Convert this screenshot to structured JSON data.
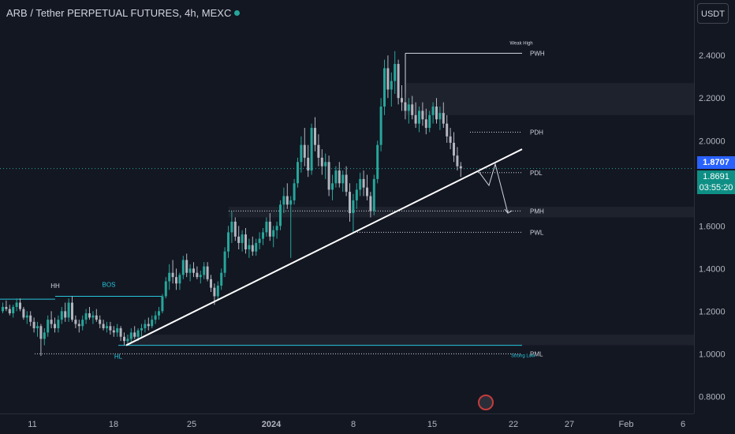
{
  "header": {
    "title": "ARB / Tether PERPETUAL FUTURES, 4h, MEXC",
    "unit_button": "USDT"
  },
  "price_tags": {
    "last_price": "1.8707",
    "current_price": "1.8691",
    "countdown": "03:55:20"
  },
  "colors": {
    "background": "#131722",
    "up": "#26a69a",
    "down": "#b2b5be",
    "trendline": "#ffffff",
    "accent_line": "#26c6da",
    "last_price_tag": "#2962ff",
    "current_price_tag": "#0e8f85"
  },
  "chart_data": {
    "type": "candlestick",
    "y_axis": {
      "ticks": [
        "0.8000",
        "1.0000",
        "1.2000",
        "1.4000",
        "1.6000",
        "1.8000",
        "2.0000",
        "2.2000",
        "2.4000"
      ],
      "ylim": [
        0.72,
        2.66
      ],
      "position": "right"
    },
    "x_axis": {
      "tick_labels": [
        "11",
        "18",
        "25",
        "2024",
        "8",
        "15",
        "22",
        "27",
        "Feb",
        "6"
      ]
    },
    "annotations": [
      {
        "text": "HH",
        "role": "swing-high-label"
      },
      {
        "text": "BOS",
        "role": "break-of-structure-label"
      },
      {
        "text": "HL",
        "role": "swing-low-label"
      },
      {
        "text": "Weak High",
        "role": "label"
      },
      {
        "text": "PWH",
        "value": 2.41
      },
      {
        "text": "PDH",
        "value": 2.04
      },
      {
        "text": "PDL",
        "value": 1.85
      },
      {
        "text": "PMH",
        "value": 1.67
      },
      {
        "text": "PWL",
        "value": 1.57
      },
      {
        "text": "PML",
        "value": 1.0
      },
      {
        "text": "Strong Low",
        "role": "label"
      }
    ],
    "levels": {
      "hh": 1.26,
      "bos": 1.27,
      "hl": 1.04,
      "pwh": 2.41,
      "pdh": 2.04,
      "pdl": 1.85,
      "pmh": 1.67,
      "pwl": 1.57,
      "pml": 1.0,
      "cyan_line": 1.04
    },
    "zones": [
      {
        "from": 2.27,
        "to": 2.12
      },
      {
        "from": 1.69,
        "to": 1.64
      },
      {
        "from": 1.09,
        "to": 1.04
      }
    ],
    "trendline": {
      "from_value": 1.04,
      "to_value": 1.96
    },
    "projection": [
      1.86,
      1.79,
      1.89,
      1.66
    ],
    "last_price": 1.8707,
    "current_price": 1.8691,
    "ohlc": [
      [
        1.2,
        1.24,
        1.19,
        1.22
      ],
      [
        1.22,
        1.25,
        1.2,
        1.21
      ],
      [
        1.21,
        1.23,
        1.18,
        1.19
      ],
      [
        1.19,
        1.23,
        1.17,
        1.22
      ],
      [
        1.22,
        1.26,
        1.2,
        1.24
      ],
      [
        1.24,
        1.26,
        1.2,
        1.21
      ],
      [
        1.21,
        1.22,
        1.16,
        1.17
      ],
      [
        1.17,
        1.2,
        1.14,
        1.18
      ],
      [
        1.18,
        1.2,
        1.13,
        1.15
      ],
      [
        1.15,
        1.17,
        1.1,
        1.12
      ],
      [
        1.12,
        1.15,
        1.08,
        1.13
      ],
      [
        1.13,
        1.14,
        0.99,
        1.07
      ],
      [
        1.07,
        1.12,
        1.04,
        1.1
      ],
      [
        1.1,
        1.18,
        1.08,
        1.16
      ],
      [
        1.16,
        1.2,
        1.12,
        1.14
      ],
      [
        1.14,
        1.17,
        1.1,
        1.12
      ],
      [
        1.12,
        1.18,
        1.1,
        1.16
      ],
      [
        1.16,
        1.22,
        1.14,
        1.2
      ],
      [
        1.2,
        1.24,
        1.15,
        1.17
      ],
      [
        1.17,
        1.26,
        1.15,
        1.24
      ],
      [
        1.24,
        1.27,
        1.15,
        1.16
      ],
      [
        1.16,
        1.18,
        1.12,
        1.14
      ],
      [
        1.14,
        1.16,
        1.1,
        1.13
      ],
      [
        1.13,
        1.18,
        1.11,
        1.16
      ],
      [
        1.16,
        1.21,
        1.14,
        1.19
      ],
      [
        1.19,
        1.22,
        1.16,
        1.17
      ],
      [
        1.17,
        1.2,
        1.14,
        1.18
      ],
      [
        1.18,
        1.21,
        1.15,
        1.16
      ],
      [
        1.16,
        1.18,
        1.12,
        1.14
      ],
      [
        1.14,
        1.16,
        1.11,
        1.12
      ],
      [
        1.12,
        1.15,
        1.1,
        1.13
      ],
      [
        1.13,
        1.15,
        1.09,
        1.11
      ],
      [
        1.11,
        1.13,
        1.08,
        1.1
      ],
      [
        1.1,
        1.14,
        1.08,
        1.12
      ],
      [
        1.12,
        1.13,
        1.06,
        1.08
      ],
      [
        1.08,
        1.1,
        1.04,
        1.06
      ],
      [
        1.06,
        1.09,
        1.04,
        1.07
      ],
      [
        1.07,
        1.12,
        1.05,
        1.1
      ],
      [
        1.1,
        1.13,
        1.07,
        1.08
      ],
      [
        1.08,
        1.12,
        1.06,
        1.11
      ],
      [
        1.11,
        1.14,
        1.08,
        1.12
      ],
      [
        1.12,
        1.16,
        1.1,
        1.14
      ],
      [
        1.14,
        1.17,
        1.11,
        1.13
      ],
      [
        1.13,
        1.18,
        1.12,
        1.16
      ],
      [
        1.16,
        1.2,
        1.14,
        1.18
      ],
      [
        1.18,
        1.22,
        1.16,
        1.2
      ],
      [
        1.2,
        1.28,
        1.19,
        1.27
      ],
      [
        1.27,
        1.36,
        1.26,
        1.34
      ],
      [
        1.34,
        1.42,
        1.3,
        1.38
      ],
      [
        1.38,
        1.44,
        1.33,
        1.36
      ],
      [
        1.36,
        1.4,
        1.3,
        1.33
      ],
      [
        1.33,
        1.38,
        1.3,
        1.37
      ],
      [
        1.37,
        1.46,
        1.35,
        1.44
      ],
      [
        1.44,
        1.47,
        1.36,
        1.38
      ],
      [
        1.38,
        1.42,
        1.34,
        1.4
      ],
      [
        1.4,
        1.43,
        1.36,
        1.38
      ],
      [
        1.38,
        1.41,
        1.35,
        1.36
      ],
      [
        1.36,
        1.39,
        1.33,
        1.37
      ],
      [
        1.37,
        1.43,
        1.35,
        1.41
      ],
      [
        1.41,
        1.43,
        1.34,
        1.35
      ],
      [
        1.35,
        1.37,
        1.29,
        1.31
      ],
      [
        1.31,
        1.33,
        1.23,
        1.27
      ],
      [
        1.27,
        1.34,
        1.25,
        1.32
      ],
      [
        1.32,
        1.4,
        1.3,
        1.38
      ],
      [
        1.38,
        1.5,
        1.36,
        1.48
      ],
      [
        1.48,
        1.6,
        1.45,
        1.57
      ],
      [
        1.57,
        1.67,
        1.52,
        1.62
      ],
      [
        1.62,
        1.64,
        1.53,
        1.55
      ],
      [
        1.55,
        1.6,
        1.49,
        1.52
      ],
      [
        1.52,
        1.58,
        1.48,
        1.56
      ],
      [
        1.56,
        1.59,
        1.47,
        1.49
      ],
      [
        1.49,
        1.54,
        1.45,
        1.51
      ],
      [
        1.51,
        1.55,
        1.46,
        1.48
      ],
      [
        1.48,
        1.54,
        1.46,
        1.52
      ],
      [
        1.52,
        1.57,
        1.49,
        1.54
      ],
      [
        1.54,
        1.59,
        1.51,
        1.57
      ],
      [
        1.57,
        1.64,
        1.55,
        1.62
      ],
      [
        1.62,
        1.66,
        1.53,
        1.55
      ],
      [
        1.55,
        1.6,
        1.5,
        1.58
      ],
      [
        1.58,
        1.62,
        1.54,
        1.6
      ],
      [
        1.6,
        1.72,
        1.58,
        1.7
      ],
      [
        1.7,
        1.78,
        1.66,
        1.74
      ],
      [
        1.74,
        1.8,
        1.68,
        1.7
      ],
      [
        1.7,
        1.74,
        1.45,
        1.72
      ],
      [
        1.72,
        1.82,
        1.7,
        1.8
      ],
      [
        1.8,
        1.92,
        1.78,
        1.9
      ],
      [
        1.9,
        2.02,
        1.85,
        1.98
      ],
      [
        1.98,
        2.06,
        1.88,
        1.92
      ],
      [
        1.92,
        1.98,
        1.83,
        1.86
      ],
      [
        1.86,
        2.08,
        1.84,
        2.06
      ],
      [
        2.06,
        2.11,
        1.95,
        1.98
      ],
      [
        1.98,
        2.03,
        1.88,
        1.92
      ],
      [
        1.92,
        1.96,
        1.84,
        1.88
      ],
      [
        1.88,
        1.94,
        1.82,
        1.9
      ],
      [
        1.9,
        1.93,
        1.74,
        1.77
      ],
      [
        1.77,
        1.84,
        1.72,
        1.8
      ],
      [
        1.8,
        1.88,
        1.78,
        1.86
      ],
      [
        1.86,
        1.9,
        1.78,
        1.8
      ],
      [
        1.8,
        1.86,
        1.76,
        1.84
      ],
      [
        1.84,
        1.88,
        1.74,
        1.76
      ],
      [
        1.76,
        1.8,
        1.62,
        1.66
      ],
      [
        1.66,
        1.75,
        1.57,
        1.72
      ],
      [
        1.72,
        1.8,
        1.68,
        1.77
      ],
      [
        1.77,
        1.85,
        1.74,
        1.82
      ],
      [
        1.82,
        1.86,
        1.74,
        1.78
      ],
      [
        1.78,
        1.84,
        1.72,
        1.74
      ],
      [
        1.74,
        1.76,
        1.64,
        1.67
      ],
      [
        1.67,
        1.84,
        1.65,
        1.82
      ],
      [
        1.82,
        2.0,
        1.8,
        1.98
      ],
      [
        1.98,
        2.2,
        1.95,
        2.16
      ],
      [
        2.16,
        2.38,
        2.12,
        2.34
      ],
      [
        2.34,
        2.4,
        2.2,
        2.24
      ],
      [
        2.24,
        2.32,
        2.16,
        2.28
      ],
      [
        2.28,
        2.42,
        2.22,
        2.36
      ],
      [
        2.36,
        2.38,
        2.17,
        2.2
      ],
      [
        2.2,
        2.26,
        2.14,
        2.18
      ],
      [
        2.18,
        2.22,
        2.1,
        2.14
      ],
      [
        2.14,
        2.2,
        2.08,
        2.17
      ],
      [
        2.17,
        2.21,
        2.1,
        2.12
      ],
      [
        2.12,
        2.18,
        2.06,
        2.08
      ],
      [
        2.08,
        2.16,
        2.04,
        2.14
      ],
      [
        2.14,
        2.18,
        2.07,
        2.1
      ],
      [
        2.1,
        2.15,
        2.03,
        2.06
      ],
      [
        2.06,
        2.14,
        2.04,
        2.12
      ],
      [
        2.12,
        2.18,
        2.08,
        2.16
      ],
      [
        2.16,
        2.2,
        2.08,
        2.1
      ],
      [
        2.1,
        2.16,
        2.05,
        2.13
      ],
      [
        2.13,
        2.18,
        2.06,
        2.08
      ],
      [
        2.08,
        2.12,
        1.99,
        2.02
      ],
      [
        2.02,
        2.06,
        1.96,
        1.99
      ],
      [
        1.99,
        2.04,
        1.9,
        1.93
      ],
      [
        1.93,
        1.97,
        1.86,
        1.88
      ],
      [
        1.88,
        1.9,
        1.83,
        1.87
      ]
    ]
  }
}
